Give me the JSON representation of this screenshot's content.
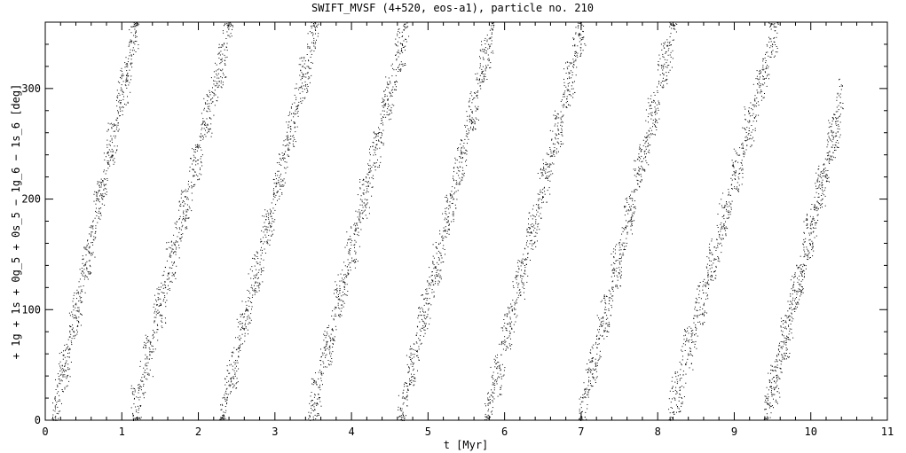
{
  "chart_data": {
    "type": "scatter",
    "title": "SWIFT_MVSF (4+520, eos-a1), particle no. 210",
    "xlabel": "t [Myr]",
    "ylabel": "+ 1g + 1s + 0g_5 + 0s_5 − 1g_6 − 1s_6 [deg]",
    "xlim": [
      0,
      11
    ],
    "ylim": [
      0,
      360
    ],
    "x_ticks": [
      "0",
      "1",
      "2",
      "3",
      "4",
      "5",
      "6",
      "7",
      "8",
      "9",
      "10",
      "11"
    ],
    "y_ticks": [
      "0",
      "100",
      "200",
      "300"
    ],
    "grid": false,
    "marker_color": "#000000",
    "series": [
      {
        "segments": [
          {
            "t_start": 0.1,
            "t_end": 1.2,
            "y_start": 0,
            "y_end": 360
          },
          {
            "t_start": 1.13,
            "t_end": 2.42,
            "y_start": 0,
            "y_end": 360
          },
          {
            "t_start": 2.28,
            "t_end": 3.55,
            "y_start": 0,
            "y_end": 360
          },
          {
            "t_start": 3.45,
            "t_end": 4.72,
            "y_start": 0,
            "y_end": 360
          },
          {
            "t_start": 4.62,
            "t_end": 5.85,
            "y_start": 0,
            "y_end": 360
          },
          {
            "t_start": 5.75,
            "t_end": 7.03,
            "y_start": 0,
            "y_end": 360
          },
          {
            "t_start": 6.98,
            "t_end": 8.22,
            "y_start": 0,
            "y_end": 360
          },
          {
            "t_start": 8.15,
            "t_end": 9.55,
            "y_start": 0,
            "y_end": 360
          },
          {
            "t_start": 9.4,
            "t_end": 10.4,
            "y_start": 0,
            "y_end": 290
          }
        ]
      }
    ]
  }
}
